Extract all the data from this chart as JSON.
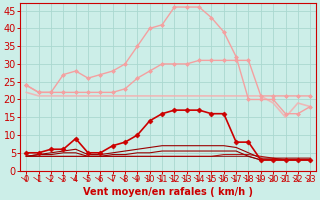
{
  "xlabel": "Vent moyen/en rafales ( km/h )",
  "background_color": "#cceee8",
  "grid_color": "#aad8d0",
  "xlim": [
    -0.5,
    23.5
  ],
  "ylim": [
    0,
    47
  ],
  "yticks": [
    0,
    5,
    10,
    15,
    20,
    25,
    30,
    35,
    40,
    45
  ],
  "xticks": [
    0,
    1,
    2,
    3,
    4,
    5,
    6,
    7,
    8,
    9,
    10,
    11,
    12,
    13,
    14,
    15,
    16,
    17,
    18,
    19,
    20,
    21,
    22,
    23
  ],
  "series": [
    {
      "x": [
        0,
        1,
        2,
        3,
        4,
        5,
        6,
        7,
        8,
        9,
        10,
        11,
        12,
        13,
        14,
        15,
        16,
        17,
        18,
        19,
        20,
        21,
        22,
        23
      ],
      "y": [
        24,
        22,
        22,
        27,
        28,
        26,
        27,
        28,
        30,
        35,
        40,
        41,
        46,
        46,
        46,
        43,
        39,
        32,
        20,
        20,
        20,
        16,
        16,
        18
      ],
      "color": "#f4a0a0",
      "linewidth": 1.0,
      "marker": "D",
      "markersize": 2.0,
      "alpha": 1.0
    },
    {
      "x": [
        0,
        1,
        2,
        3,
        4,
        5,
        6,
        7,
        8,
        9,
        10,
        11,
        12,
        13,
        14,
        15,
        16,
        17,
        18,
        19,
        20,
        21,
        22,
        23
      ],
      "y": [
        24,
        22,
        22,
        22,
        22,
        22,
        22,
        22,
        23,
        26,
        28,
        30,
        30,
        30,
        31,
        31,
        31,
        31,
        31,
        21,
        21,
        21,
        21,
        21
      ],
      "color": "#f4a0a0",
      "linewidth": 1.0,
      "marker": "D",
      "markersize": 2.0,
      "alpha": 1.0
    },
    {
      "x": [
        0,
        1,
        2,
        3,
        4,
        5,
        6,
        7,
        8,
        9,
        10,
        11,
        12,
        13,
        14,
        15,
        16,
        17,
        18,
        19,
        20,
        21,
        22,
        23
      ],
      "y": [
        22,
        21,
        21,
        21,
        21,
        21,
        21,
        21,
        21,
        21,
        21,
        21,
        21,
        21,
        21,
        21,
        21,
        21,
        21,
        21,
        19,
        15,
        19,
        18
      ],
      "color": "#f4b0b0",
      "linewidth": 1.2,
      "marker": null,
      "markersize": 0,
      "alpha": 0.85
    },
    {
      "x": [
        0,
        1,
        2,
        3,
        4,
        5,
        6,
        7,
        8,
        9,
        10,
        11,
        12,
        13,
        14,
        15,
        16,
        17,
        18,
        19,
        20,
        21,
        22,
        23
      ],
      "y": [
        5,
        5,
        6,
        6,
        9,
        5,
        5,
        7,
        8,
        10,
        14,
        16,
        17,
        17,
        17,
        16,
        16,
        8,
        8,
        3,
        3,
        3,
        3,
        3
      ],
      "color": "#cc0000",
      "linewidth": 1.2,
      "marker": "D",
      "markersize": 2.5,
      "alpha": 1.0
    },
    {
      "x": [
        0,
        1,
        2,
        3,
        4,
        5,
        6,
        7,
        8,
        9,
        10,
        11,
        12,
        13,
        14,
        15,
        16,
        17,
        18,
        19,
        20,
        21,
        22,
        23
      ],
      "y": [
        4,
        4.5,
        4.5,
        5,
        5,
        4,
        4,
        4.5,
        4.5,
        5,
        5,
        5.5,
        5.5,
        5.5,
        5.5,
        5.5,
        5.5,
        5.5,
        4,
        3,
        3,
        3,
        3,
        3
      ],
      "color": "#990000",
      "linewidth": 0.8,
      "marker": null,
      "markersize": 0,
      "alpha": 1.0
    },
    {
      "x": [
        0,
        1,
        2,
        3,
        4,
        5,
        6,
        7,
        8,
        9,
        10,
        11,
        12,
        13,
        14,
        15,
        16,
        17,
        18,
        19,
        20,
        21,
        22,
        23
      ],
      "y": [
        4,
        4.5,
        5,
        5.5,
        6,
        4.5,
        4.5,
        5,
        5.5,
        6,
        6.5,
        7,
        7,
        7,
        7,
        7,
        7,
        6.5,
        5,
        3.5,
        3.5,
        3.5,
        3.5,
        3.5
      ],
      "color": "#990000",
      "linewidth": 0.8,
      "marker": null,
      "markersize": 0,
      "alpha": 1.0
    },
    {
      "x": [
        0,
        1,
        2,
        3,
        4,
        5,
        6,
        7,
        8,
        9,
        10,
        11,
        12,
        13,
        14,
        15,
        16,
        17,
        18,
        19,
        20,
        21,
        22,
        23
      ],
      "y": [
        4,
        4,
        4,
        4,
        4,
        4,
        4,
        4,
        4,
        4,
        4,
        4,
        4,
        4,
        4,
        4,
        4,
        4,
        4,
        3,
        3,
        3,
        3,
        3
      ],
      "color": "#880000",
      "linewidth": 0.7,
      "marker": null,
      "markersize": 0,
      "alpha": 0.9
    },
    {
      "x": [
        0,
        1,
        2,
        3,
        4,
        5,
        6,
        7,
        8,
        9,
        10,
        11,
        12,
        13,
        14,
        15,
        16,
        17,
        18,
        19,
        20,
        21,
        22,
        23
      ],
      "y": [
        4,
        4,
        4,
        4,
        4,
        4,
        4,
        4,
        4,
        4,
        4,
        4,
        4,
        4,
        4,
        4,
        4.5,
        4.5,
        4.5,
        4,
        3.5,
        3,
        3,
        3
      ],
      "color": "#aa0000",
      "linewidth": 0.8,
      "marker": null,
      "markersize": 0,
      "alpha": 0.9
    }
  ],
  "arrow_color": "#cc0000",
  "xlabel_color": "#cc0000",
  "xlabel_fontsize": 7,
  "tick_color": "#cc0000",
  "tick_fontsize": 6,
  "ytick_fontsize": 7
}
